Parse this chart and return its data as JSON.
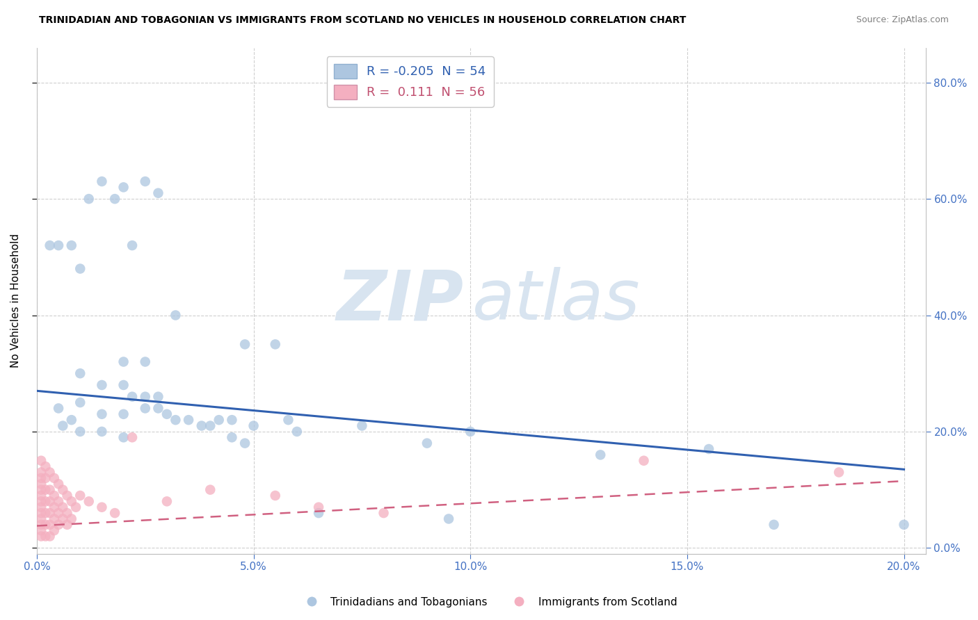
{
  "title": "TRINIDADIAN AND TOBAGONIAN VS IMMIGRANTS FROM SCOTLAND NO VEHICLES IN HOUSEHOLD CORRELATION CHART",
  "source": "Source: ZipAtlas.com",
  "ylabel": "No Vehicles in Household",
  "xlim": [
    0.0,
    0.205
  ],
  "ylim": [
    -0.01,
    0.86
  ],
  "xticks": [
    0.0,
    0.05,
    0.1,
    0.15,
    0.2
  ],
  "yticks": [
    0.0,
    0.2,
    0.4,
    0.6,
    0.8
  ],
  "blue_R": -0.205,
  "blue_N": 54,
  "pink_R": 0.111,
  "pink_N": 56,
  "blue_color": "#adc6e0",
  "pink_color": "#f4afc0",
  "blue_line_color": "#3060b0",
  "pink_line_color": "#d06080",
  "watermark_zip": "ZIP",
  "watermark_atlas": "atlas",
  "watermark_color": "#d8e4f0",
  "blue_line_x0": 0.0,
  "blue_line_y0": 0.27,
  "blue_line_x1": 0.2,
  "blue_line_y1": 0.135,
  "pink_line_x0": 0.0,
  "pink_line_y0": 0.038,
  "pink_line_x1": 0.2,
  "pink_line_y1": 0.115,
  "blue_scatter": [
    [
      0.005,
      0.52
    ],
    [
      0.01,
      0.48
    ],
    [
      0.015,
      0.63
    ],
    [
      0.02,
      0.62
    ],
    [
      0.025,
      0.63
    ],
    [
      0.028,
      0.61
    ],
    [
      0.012,
      0.6
    ],
    [
      0.018,
      0.6
    ],
    [
      0.008,
      0.52
    ],
    [
      0.022,
      0.52
    ],
    [
      0.032,
      0.4
    ],
    [
      0.048,
      0.35
    ],
    [
      0.055,
      0.35
    ],
    [
      0.02,
      0.32
    ],
    [
      0.025,
      0.32
    ],
    [
      0.01,
      0.3
    ],
    [
      0.015,
      0.28
    ],
    [
      0.02,
      0.28
    ],
    [
      0.022,
      0.26
    ],
    [
      0.025,
      0.26
    ],
    [
      0.028,
      0.26
    ],
    [
      0.005,
      0.24
    ],
    [
      0.01,
      0.25
    ],
    [
      0.015,
      0.23
    ],
    [
      0.02,
      0.23
    ],
    [
      0.025,
      0.24
    ],
    [
      0.028,
      0.24
    ],
    [
      0.03,
      0.23
    ],
    [
      0.032,
      0.22
    ],
    [
      0.035,
      0.22
    ],
    [
      0.038,
      0.21
    ],
    [
      0.04,
      0.21
    ],
    [
      0.042,
      0.22
    ],
    [
      0.045,
      0.22
    ],
    [
      0.05,
      0.21
    ],
    [
      0.058,
      0.22
    ],
    [
      0.045,
      0.19
    ],
    [
      0.048,
      0.18
    ],
    [
      0.06,
      0.2
    ],
    [
      0.02,
      0.19
    ],
    [
      0.015,
      0.2
    ],
    [
      0.01,
      0.2
    ],
    [
      0.008,
      0.22
    ],
    [
      0.006,
      0.21
    ],
    [
      0.003,
      0.52
    ],
    [
      0.075,
      0.21
    ],
    [
      0.09,
      0.18
    ],
    [
      0.1,
      0.2
    ],
    [
      0.13,
      0.16
    ],
    [
      0.155,
      0.17
    ],
    [
      0.065,
      0.06
    ],
    [
      0.095,
      0.05
    ],
    [
      0.17,
      0.04
    ],
    [
      0.2,
      0.04
    ]
  ],
  "pink_scatter": [
    [
      0.001,
      0.15
    ],
    [
      0.001,
      0.13
    ],
    [
      0.001,
      0.12
    ],
    [
      0.001,
      0.11
    ],
    [
      0.001,
      0.1
    ],
    [
      0.001,
      0.09
    ],
    [
      0.001,
      0.08
    ],
    [
      0.001,
      0.07
    ],
    [
      0.001,
      0.06
    ],
    [
      0.001,
      0.05
    ],
    [
      0.001,
      0.04
    ],
    [
      0.001,
      0.03
    ],
    [
      0.001,
      0.02
    ],
    [
      0.002,
      0.14
    ],
    [
      0.002,
      0.12
    ],
    [
      0.002,
      0.1
    ],
    [
      0.002,
      0.08
    ],
    [
      0.002,
      0.06
    ],
    [
      0.002,
      0.04
    ],
    [
      0.002,
      0.02
    ],
    [
      0.003,
      0.13
    ],
    [
      0.003,
      0.1
    ],
    [
      0.003,
      0.08
    ],
    [
      0.003,
      0.06
    ],
    [
      0.003,
      0.04
    ],
    [
      0.003,
      0.02
    ],
    [
      0.004,
      0.12
    ],
    [
      0.004,
      0.09
    ],
    [
      0.004,
      0.07
    ],
    [
      0.004,
      0.05
    ],
    [
      0.004,
      0.03
    ],
    [
      0.005,
      0.11
    ],
    [
      0.005,
      0.08
    ],
    [
      0.005,
      0.06
    ],
    [
      0.005,
      0.04
    ],
    [
      0.006,
      0.1
    ],
    [
      0.006,
      0.07
    ],
    [
      0.006,
      0.05
    ],
    [
      0.007,
      0.09
    ],
    [
      0.007,
      0.06
    ],
    [
      0.007,
      0.04
    ],
    [
      0.008,
      0.08
    ],
    [
      0.008,
      0.05
    ],
    [
      0.009,
      0.07
    ],
    [
      0.01,
      0.09
    ],
    [
      0.012,
      0.08
    ],
    [
      0.015,
      0.07
    ],
    [
      0.018,
      0.06
    ],
    [
      0.022,
      0.19
    ],
    [
      0.03,
      0.08
    ],
    [
      0.04,
      0.1
    ],
    [
      0.055,
      0.09
    ],
    [
      0.065,
      0.07
    ],
    [
      0.08,
      0.06
    ],
    [
      0.14,
      0.15
    ],
    [
      0.185,
      0.13
    ]
  ]
}
